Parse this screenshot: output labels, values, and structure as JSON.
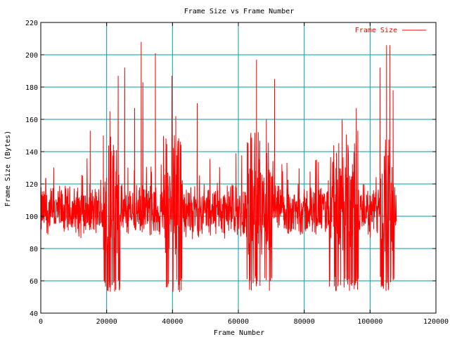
{
  "chart_data": {
    "type": "line",
    "title": "Frame Size vs Frame Number",
    "xlabel": "Frame Number",
    "ylabel": "Frame Size (Bytes)",
    "xlim": [
      0,
      120000
    ],
    "ylim": [
      40,
      220
    ],
    "xticks": [
      0,
      20000,
      40000,
      60000,
      80000,
      100000,
      120000
    ],
    "yticks": [
      40,
      60,
      80,
      100,
      120,
      140,
      160,
      180,
      200,
      220
    ],
    "grid": true,
    "legend_position": "top-right",
    "series": [
      {
        "name": "Frame Size",
        "color": "#ff0000",
        "x_range": [
          0,
          108000
        ],
        "typical_band": [
          88,
          118
        ],
        "min_value": 53,
        "max_value": 208,
        "peaks": [
          {
            "x": 15000,
            "y": 153
          },
          {
            "x": 19000,
            "y": 150
          },
          {
            "x": 21000,
            "y": 165
          },
          {
            "x": 23500,
            "y": 187
          },
          {
            "x": 25500,
            "y": 192
          },
          {
            "x": 28500,
            "y": 167
          },
          {
            "x": 30500,
            "y": 208
          },
          {
            "x": 31000,
            "y": 183
          },
          {
            "x": 34800,
            "y": 201
          },
          {
            "x": 39800,
            "y": 187
          },
          {
            "x": 41000,
            "y": 162
          },
          {
            "x": 47500,
            "y": 170
          },
          {
            "x": 59300,
            "y": 139
          },
          {
            "x": 65500,
            "y": 197
          },
          {
            "x": 68500,
            "y": 160
          },
          {
            "x": 71000,
            "y": 185
          },
          {
            "x": 91500,
            "y": 160
          },
          {
            "x": 95800,
            "y": 167
          },
          {
            "x": 103000,
            "y": 192
          },
          {
            "x": 105000,
            "y": 206
          },
          {
            "x": 106000,
            "y": 206
          },
          {
            "x": 107000,
            "y": 178
          }
        ],
        "dense_dip_regions": [
          [
            19000,
            24000
          ],
          [
            37000,
            43000
          ],
          [
            62500,
            70500
          ],
          [
            87500,
            96500
          ],
          [
            103000,
            107500
          ]
        ]
      }
    ]
  }
}
